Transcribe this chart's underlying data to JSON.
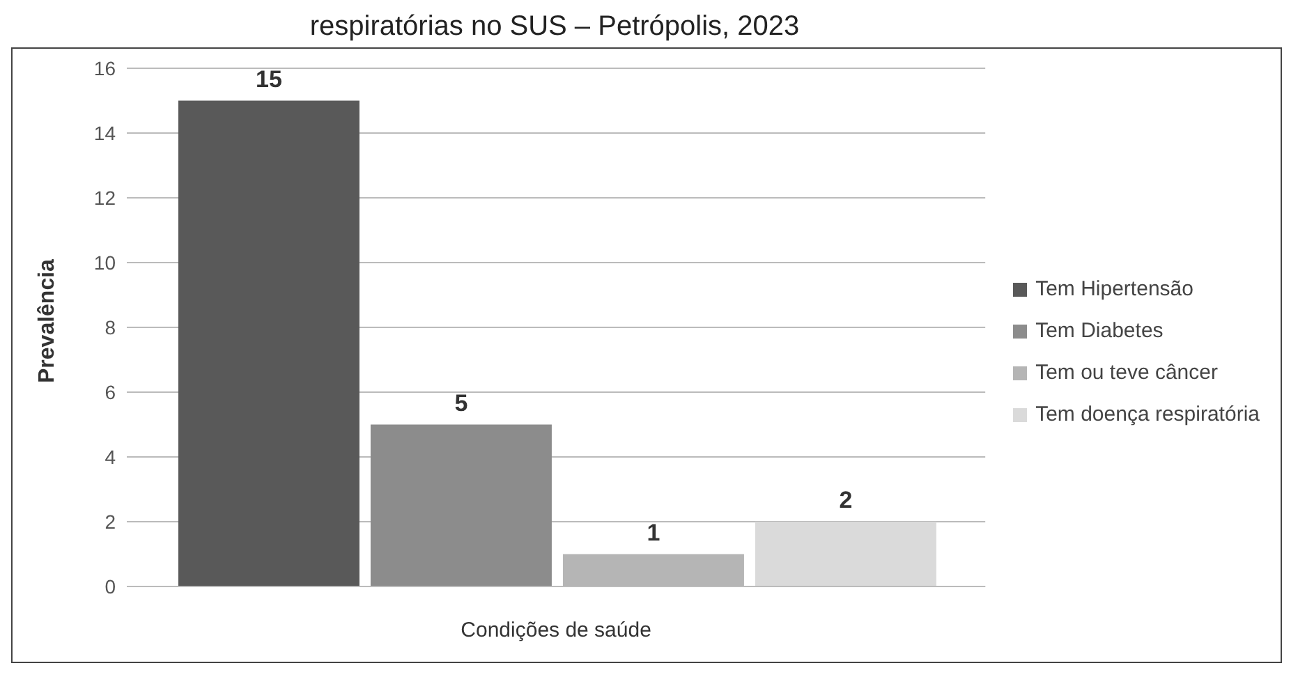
{
  "chart_data": {
    "type": "bar",
    "title": "respiratórias no SUS – Petrópolis, 2023",
    "xlabel": "Condições de saúde",
    "ylabel": "Prevalência",
    "categories": [
      null
    ],
    "series": [
      {
        "name": "Tem Hipertensão",
        "color": "#595959",
        "values": [
          15
        ]
      },
      {
        "name": "Tem Diabetes",
        "color": "#8c8c8c",
        "values": [
          5
        ]
      },
      {
        "name": "Tem ou teve câncer",
        "color": "#b5b5b5",
        "values": [
          1
        ]
      },
      {
        "name": "Tem doença respiratória",
        "color": "#dadada",
        "values": [
          2
        ]
      }
    ],
    "ylim": [
      0,
      16
    ],
    "yticks": [
      0,
      2,
      4,
      6,
      8,
      10,
      12,
      14,
      16
    ],
    "grid": "y",
    "legend": "right",
    "data_labels": true
  }
}
